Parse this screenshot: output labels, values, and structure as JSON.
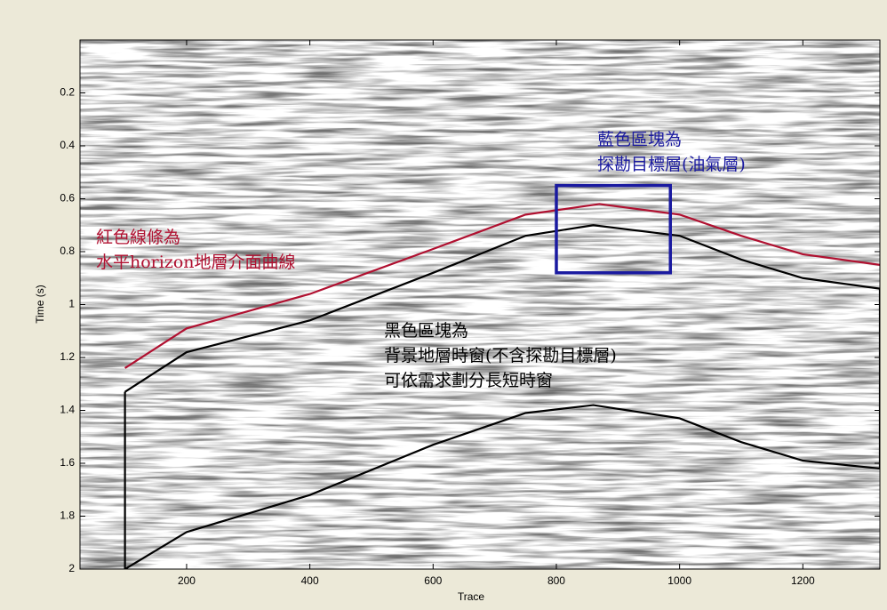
{
  "chart_data": {
    "type": "line",
    "xlabel": "Trace",
    "ylabel": "Time (s)",
    "xlim": [
      27,
      1325
    ],
    "ylim": [
      0,
      2
    ],
    "y_reversed": true,
    "xticks": [
      200,
      400,
      600,
      800,
      1000,
      1200
    ],
    "yticks": [
      0.2,
      0.4,
      0.6,
      0.8,
      1,
      1.2,
      1.4,
      1.6,
      1.8,
      2
    ],
    "grid": false,
    "series": [
      {
        "color": "#b01030",
        "x": [
          100,
          200,
          400,
          600,
          750,
          870,
          1000,
          1100,
          1200,
          1325
        ],
        "values": [
          1.24,
          1.09,
          0.96,
          0.79,
          0.66,
          0.62,
          0.66,
          0.74,
          0.81,
          0.85
        ]
      },
      {
        "color": "#000000",
        "x": [
          100,
          200,
          400,
          600,
          750,
          860,
          1000,
          1100,
          1200,
          1325
        ],
        "values": [
          1.33,
          1.18,
          1.06,
          0.88,
          0.74,
          0.7,
          0.74,
          0.83,
          0.9,
          0.94
        ]
      },
      {
        "color": "#000000",
        "x": [
          100,
          200,
          400,
          600,
          750,
          860,
          1000,
          1100,
          1200,
          1325
        ],
        "values": [
          2.0,
          1.86,
          1.72,
          1.53,
          1.41,
          1.38,
          1.43,
          1.52,
          1.59,
          1.62
        ]
      }
    ],
    "region": {
      "color": "#1a1aa0",
      "x": [
        800,
        985
      ],
      "y": [
        0.55,
        0.88
      ]
    },
    "annotations": [
      {
        "color": "#b01030",
        "lines": [
          "紅色線條為",
          "水平horizon地層介面曲線"
        ]
      },
      {
        "color": "#1a1aa0",
        "lines": [
          "藍色區塊為",
          "探勘目標層(油氣層)"
        ]
      },
      {
        "color": "#000000",
        "lines": [
          "黑色區塊為",
          "背景地層時窗(不含探勘目標層)",
          "可依需求劃分長短時窗"
        ]
      }
    ]
  }
}
